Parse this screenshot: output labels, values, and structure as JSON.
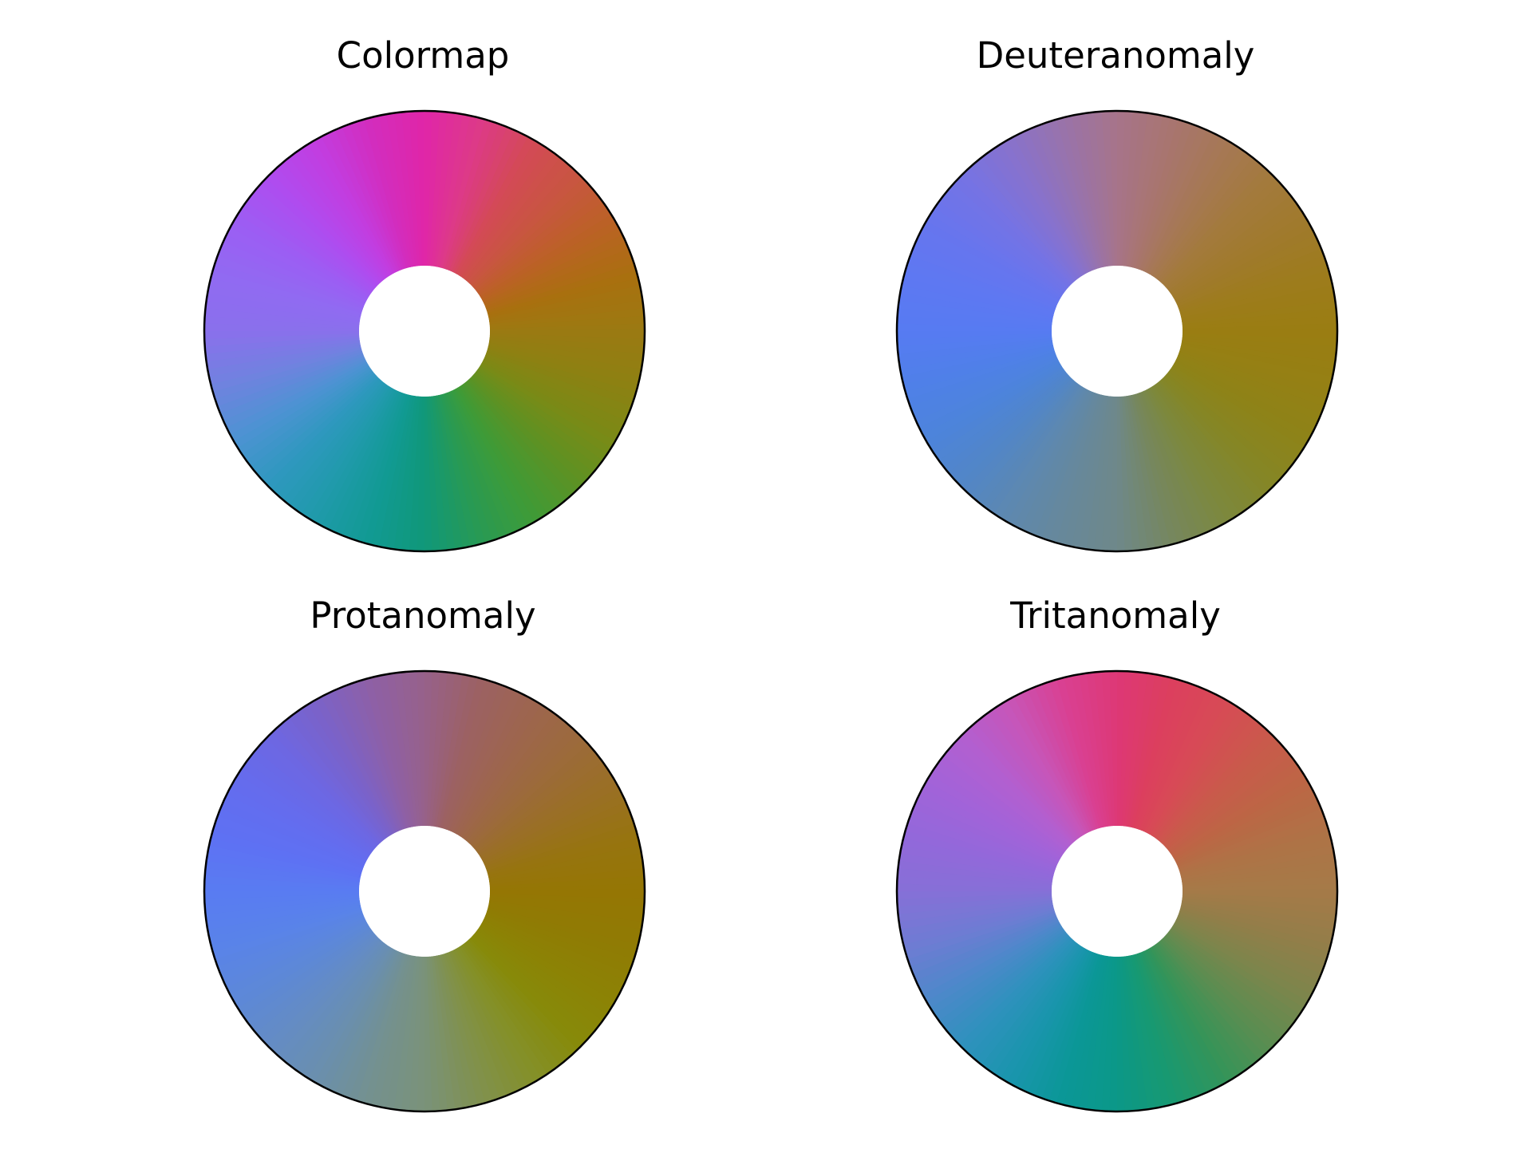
{
  "chart_data": [
    {
      "type": "other",
      "title": "Colormap",
      "stops": [
        {
          "angle_deg": 0,
          "color": "#9B7A12"
        },
        {
          "angle_deg": 15,
          "color": "#A9700F"
        },
        {
          "angle_deg": 30,
          "color": "#BA6224"
        },
        {
          "angle_deg": 45,
          "color": "#C85640"
        },
        {
          "angle_deg": 60,
          "color": "#D34A55"
        },
        {
          "angle_deg": 75,
          "color": "#DD3A88"
        },
        {
          "angle_deg": 90,
          "color": "#E026A8"
        },
        {
          "angle_deg": 105,
          "color": "#D22DBE"
        },
        {
          "angle_deg": 120,
          "color": "#C23DE0"
        },
        {
          "angle_deg": 135,
          "color": "#AF4CEF"
        },
        {
          "angle_deg": 150,
          "color": "#9C5DF3"
        },
        {
          "angle_deg": 165,
          "color": "#916AF2"
        },
        {
          "angle_deg": 180,
          "color": "#8A70EC"
        },
        {
          "angle_deg": 195,
          "color": "#6F83DF"
        },
        {
          "angle_deg": 210,
          "color": "#4C93D2"
        },
        {
          "angle_deg": 225,
          "color": "#2E98BE"
        },
        {
          "angle_deg": 240,
          "color": "#1F9AAA"
        },
        {
          "angle_deg": 255,
          "color": "#119A93"
        },
        {
          "angle_deg": 270,
          "color": "#109879"
        },
        {
          "angle_deg": 285,
          "color": "#289A54"
        },
        {
          "angle_deg": 300,
          "color": "#3E9B37"
        },
        {
          "angle_deg": 315,
          "color": "#5C9224"
        },
        {
          "angle_deg": 330,
          "color": "#7A8A16"
        },
        {
          "angle_deg": 345,
          "color": "#8D8112"
        },
        {
          "angle_deg": 360,
          "color": "#9B7A12"
        }
      ]
    },
    {
      "type": "other",
      "title": "Deuteranomaly",
      "stops": [
        {
          "angle_deg": 0,
          "color": "#9A7D12"
        },
        {
          "angle_deg": 15,
          "color": "#9D7C1C"
        },
        {
          "angle_deg": 30,
          "color": "#A07A2C"
        },
        {
          "angle_deg": 45,
          "color": "#A37A3C"
        },
        {
          "angle_deg": 60,
          "color": "#A67855"
        },
        {
          "angle_deg": 75,
          "color": "#A87570"
        },
        {
          "angle_deg": 90,
          "color": "#A7748A"
        },
        {
          "angle_deg": 105,
          "color": "#9973AA"
        },
        {
          "angle_deg": 120,
          "color": "#8872CC"
        },
        {
          "angle_deg": 135,
          "color": "#7573E4"
        },
        {
          "angle_deg": 150,
          "color": "#6775EE"
        },
        {
          "angle_deg": 165,
          "color": "#5E78F2"
        },
        {
          "angle_deg": 180,
          "color": "#577BF2"
        },
        {
          "angle_deg": 195,
          "color": "#4F80E8"
        },
        {
          "angle_deg": 210,
          "color": "#4D84DA"
        },
        {
          "angle_deg": 225,
          "color": "#5286C6"
        },
        {
          "angle_deg": 240,
          "color": "#5E88AE"
        },
        {
          "angle_deg": 255,
          "color": "#67889A"
        },
        {
          "angle_deg": 270,
          "color": "#6E888A"
        },
        {
          "angle_deg": 285,
          "color": "#76875E"
        },
        {
          "angle_deg": 300,
          "color": "#7C883E"
        },
        {
          "angle_deg": 315,
          "color": "#858626"
        },
        {
          "angle_deg": 330,
          "color": "#8E8318"
        },
        {
          "angle_deg": 345,
          "color": "#958014"
        },
        {
          "angle_deg": 360,
          "color": "#9A7D12"
        }
      ]
    },
    {
      "type": "other",
      "title": "Protanomaly",
      "stops": [
        {
          "angle_deg": 0,
          "color": "#957604"
        },
        {
          "angle_deg": 15,
          "color": "#977410"
        },
        {
          "angle_deg": 30,
          "color": "#9A6F26"
        },
        {
          "angle_deg": 45,
          "color": "#9C6A3C"
        },
        {
          "angle_deg": 60,
          "color": "#9D654F"
        },
        {
          "angle_deg": 75,
          "color": "#9C6163"
        },
        {
          "angle_deg": 90,
          "color": "#97618A"
        },
        {
          "angle_deg": 105,
          "color": "#8E60A6"
        },
        {
          "angle_deg": 120,
          "color": "#7B62C8"
        },
        {
          "angle_deg": 135,
          "color": "#6D67E2"
        },
        {
          "angle_deg": 150,
          "color": "#646CEE"
        },
        {
          "angle_deg": 165,
          "color": "#5E71F3"
        },
        {
          "angle_deg": 180,
          "color": "#597CF2"
        },
        {
          "angle_deg": 195,
          "color": "#5983E9"
        },
        {
          "angle_deg": 210,
          "color": "#5D88D8"
        },
        {
          "angle_deg": 225,
          "color": "#648CC4"
        },
        {
          "angle_deg": 240,
          "color": "#6A8FAD"
        },
        {
          "angle_deg": 255,
          "color": "#74918F"
        },
        {
          "angle_deg": 270,
          "color": "#7A927A"
        },
        {
          "angle_deg": 285,
          "color": "#80914F"
        },
        {
          "angle_deg": 300,
          "color": "#84902A"
        },
        {
          "angle_deg": 315,
          "color": "#878A0A"
        },
        {
          "angle_deg": 330,
          "color": "#8C8205"
        },
        {
          "angle_deg": 345,
          "color": "#907B04"
        },
        {
          "angle_deg": 360,
          "color": "#957604"
        }
      ]
    },
    {
      "type": "other",
      "title": "Tritanomaly",
      "stops": [
        {
          "angle_deg": 0,
          "color": "#A57A48"
        },
        {
          "angle_deg": 15,
          "color": "#AE7346"
        },
        {
          "angle_deg": 30,
          "color": "#BC6645"
        },
        {
          "angle_deg": 45,
          "color": "#C95A4B"
        },
        {
          "angle_deg": 60,
          "color": "#D74B55"
        },
        {
          "angle_deg": 75,
          "color": "#DC3F5E"
        },
        {
          "angle_deg": 90,
          "color": "#DD3876"
        },
        {
          "angle_deg": 105,
          "color": "#D94092"
        },
        {
          "angle_deg": 120,
          "color": "#C755B8"
        },
        {
          "angle_deg": 135,
          "color": "#B25FD0"
        },
        {
          "angle_deg": 150,
          "color": "#A263D9"
        },
        {
          "angle_deg": 165,
          "color": "#9368DA"
        },
        {
          "angle_deg": 180,
          "color": "#8670D7"
        },
        {
          "angle_deg": 195,
          "color": "#6E7CD3"
        },
        {
          "angle_deg": 210,
          "color": "#4D88CA"
        },
        {
          "angle_deg": 225,
          "color": "#2F91BD"
        },
        {
          "angle_deg": 240,
          "color": "#1A95AD"
        },
        {
          "angle_deg": 255,
          "color": "#0B9797"
        },
        {
          "angle_deg": 270,
          "color": "#0B9888"
        },
        {
          "angle_deg": 285,
          "color": "#189971"
        },
        {
          "angle_deg": 300,
          "color": "#349459"
        },
        {
          "angle_deg": 315,
          "color": "#5B8D51"
        },
        {
          "angle_deg": 330,
          "color": "#7B854C"
        },
        {
          "angle_deg": 345,
          "color": "#927E49"
        },
        {
          "angle_deg": 360,
          "color": "#A57A48"
        }
      ]
    }
  ],
  "colors": {
    "background": "#ffffff",
    "outline": "#000000",
    "title": "#000000"
  }
}
